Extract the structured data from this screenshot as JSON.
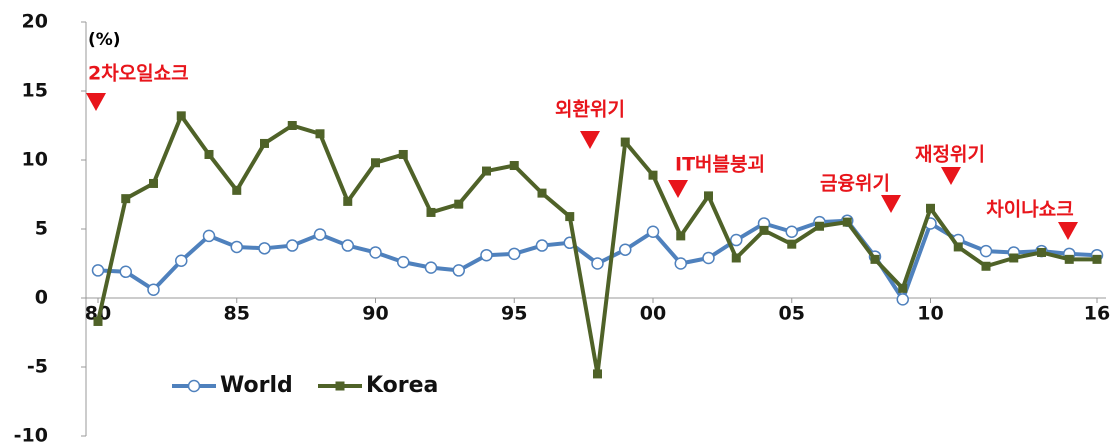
{
  "chart_data": {
    "type": "line",
    "unit_label": "(%)",
    "x": [
      1980,
      1981,
      1982,
      1983,
      1984,
      1985,
      1986,
      1987,
      1988,
      1989,
      1990,
      1991,
      1992,
      1993,
      1994,
      1995,
      1996,
      1997,
      1998,
      1999,
      2000,
      2001,
      2002,
      2003,
      2004,
      2005,
      2006,
      2007,
      2008,
      2009,
      2010,
      2011,
      2012,
      2013,
      2014,
      2015,
      2016
    ],
    "series": [
      {
        "name": "World",
        "color": "#4f81bd",
        "marker": "circle",
        "values": [
          2.0,
          1.9,
          0.6,
          2.7,
          4.5,
          3.7,
          3.6,
          3.8,
          4.6,
          3.8,
          3.3,
          2.6,
          2.2,
          2.0,
          3.1,
          3.2,
          3.8,
          4.0,
          2.5,
          3.5,
          4.8,
          2.5,
          2.9,
          4.2,
          5.4,
          4.8,
          5.5,
          5.6,
          3.0,
          -0.1,
          5.4,
          4.2,
          3.4,
          3.3,
          3.4,
          3.2,
          3.1
        ]
      },
      {
        "name": "Korea",
        "color": "#4f6228",
        "marker": "square",
        "values": [
          -1.7,
          7.2,
          8.3,
          13.2,
          10.4,
          7.8,
          11.2,
          12.5,
          11.9,
          7.0,
          9.8,
          10.4,
          6.2,
          6.8,
          9.2,
          9.6,
          7.6,
          5.9,
          -5.5,
          11.3,
          8.9,
          4.5,
          7.4,
          2.9,
          4.9,
          3.9,
          5.2,
          5.5,
          2.8,
          0.7,
          6.5,
          3.7,
          2.3,
          2.9,
          3.3,
          2.8,
          2.8
        ]
      }
    ],
    "xlim": [
      1980,
      2016
    ],
    "xticks": [
      {
        "value": 1980,
        "label": "80"
      },
      {
        "value": 1985,
        "label": "85"
      },
      {
        "value": 1990,
        "label": "90"
      },
      {
        "value": 1995,
        "label": "95"
      },
      {
        "value": 2000,
        "label": "00"
      },
      {
        "value": 2005,
        "label": "05"
      },
      {
        "value": 2010,
        "label": "10"
      },
      {
        "value": 2016,
        "label": "16"
      }
    ],
    "ylim": [
      -10,
      20
    ],
    "yticks": [
      -10,
      -5,
      0,
      5,
      10,
      15,
      20
    ],
    "annotation_color": "#e8151b",
    "annotations": [
      "2차오일쇼크",
      "외환위기",
      "IT버블붕괴",
      "금융위기",
      "재정위기",
      "차이나쇼크"
    ]
  }
}
